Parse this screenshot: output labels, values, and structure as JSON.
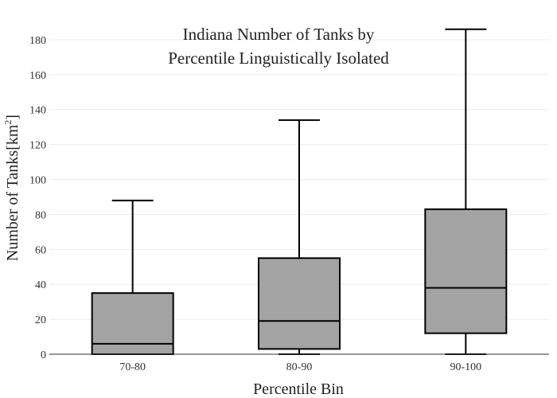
{
  "chart_data": {
    "type": "box",
    "title_lines": [
      "Indiana Number of Tanks by",
      "Percentile Linguistically Isolated"
    ],
    "xlabel": "Percentile Bin",
    "ylabel": "Number of Tanks",
    "ylabel_unit_base": "[km",
    "ylabel_unit_sup": "2",
    "ylabel_unit_close": "]",
    "ylim": [
      0,
      190
    ],
    "y_ticks": [
      0,
      20,
      40,
      60,
      80,
      100,
      120,
      140,
      160,
      180
    ],
    "grid": true,
    "box_color": "#a3a3a3",
    "categories": [
      "70-80",
      "80-90",
      "90-100"
    ],
    "boxes": [
      {
        "category": "70-80",
        "min": 0,
        "q1": 0,
        "median": 6,
        "q3": 35,
        "max": 88
      },
      {
        "category": "80-90",
        "min": 0,
        "q1": 3,
        "median": 19,
        "q3": 55,
        "max": 134
      },
      {
        "category": "90-100",
        "min": 0,
        "q1": 12,
        "median": 38,
        "q3": 83,
        "max": 186
      }
    ]
  }
}
